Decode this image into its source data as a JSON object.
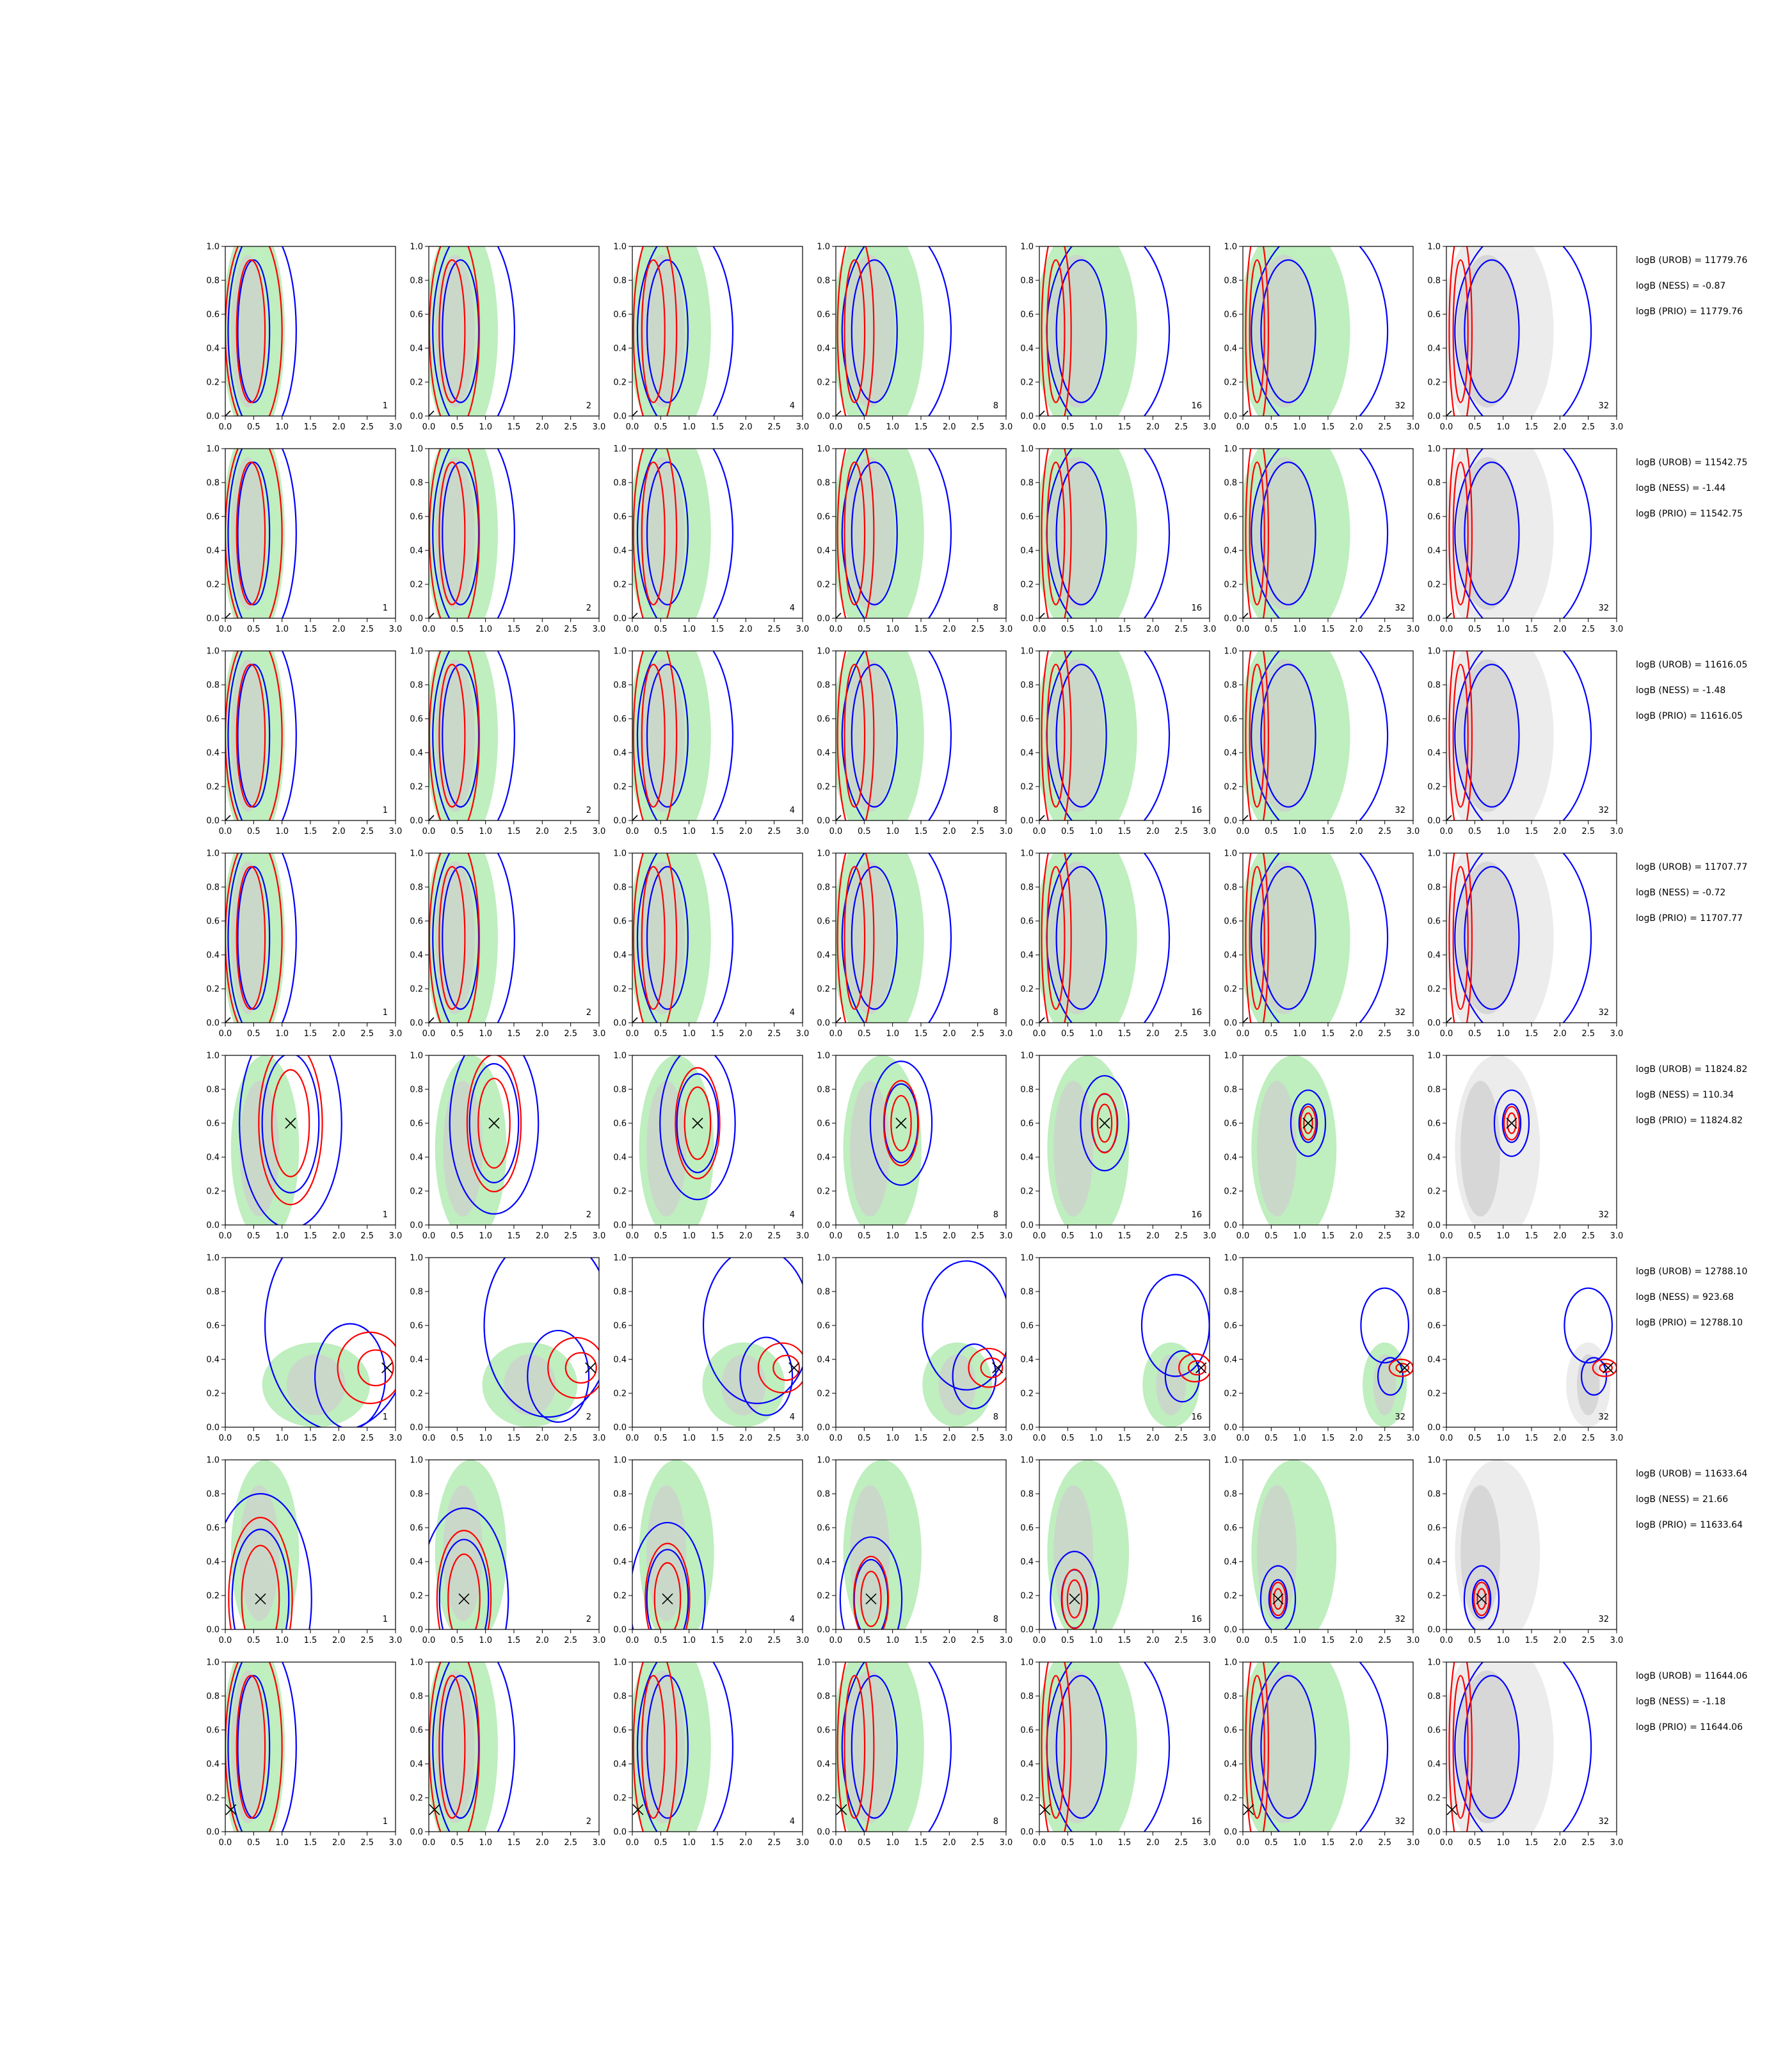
{
  "colors": {
    "blue": "#0000ff",
    "red": "#ff0000",
    "green_fill": "#bfeebf",
    "gray_dark": "#cfcfcf",
    "gray_light": "#ececec",
    "marker": "#000000"
  },
  "chart_data": {
    "type": "contour",
    "xlim": [
      0,
      3
    ],
    "ylim": [
      0,
      1
    ],
    "xticks": [
      "0.0",
      "0.5",
      "1.0",
      "1.5",
      "2.0",
      "2.5",
      "3.0"
    ],
    "yticks": [
      "0.0",
      "0.2",
      "0.4",
      "0.6",
      "0.8",
      "1.0"
    ],
    "column_labels": [
      "1",
      "2",
      "4",
      "8",
      "16",
      "32",
      "32"
    ],
    "rows": [
      {
        "logB": [
          "logB (UROB) = 11779.76",
          "logB (NESS) = -0.87",
          "logB (PRIO) = 11779.76"
        ],
        "marker": [
          0.0,
          0.0
        ],
        "kind": "band"
      },
      {
        "logB": [
          "logB (UROB) = 11542.75",
          "logB (NESS) = -1.44",
          "logB (PRIO) = 11542.75"
        ],
        "marker": [
          0.0,
          0.0
        ],
        "kind": "band"
      },
      {
        "logB": [
          "logB (UROB) = 11616.05",
          "logB (NESS) = -1.48",
          "logB (PRIO) = 11616.05"
        ],
        "marker": [
          0.0,
          0.0
        ],
        "kind": "band"
      },
      {
        "logB": [
          "logB (UROB) = 11707.77",
          "logB (NESS) = -0.72",
          "logB (PRIO) = 11707.77"
        ],
        "marker": [
          0.0,
          0.0
        ],
        "kind": "band"
      },
      {
        "logB": [
          "logB (UROB) = 11824.82",
          "logB (NESS) = 110.34",
          "logB (PRIO) = 11824.82"
        ],
        "marker": [
          1.15,
          0.6
        ],
        "kind": "peak"
      },
      {
        "logB": [
          "logB (UROB) = 12788.10",
          "logB (NESS) = 923.68",
          "logB (PRIO) = 12788.10"
        ],
        "marker": [
          2.85,
          0.35
        ],
        "kind": "edge"
      },
      {
        "logB": [
          "logB (UROB) = 11633.64",
          "logB (NESS) = 21.66",
          "logB (PRIO) = 11633.64"
        ],
        "marker": [
          0.62,
          0.18
        ],
        "kind": "peak"
      },
      {
        "logB": [
          "logB (UROB) = 11644.06",
          "logB (NESS) = -1.18",
          "logB (PRIO) = 11644.06"
        ],
        "marker": [
          0.1,
          0.13
        ],
        "kind": "band"
      }
    ]
  }
}
